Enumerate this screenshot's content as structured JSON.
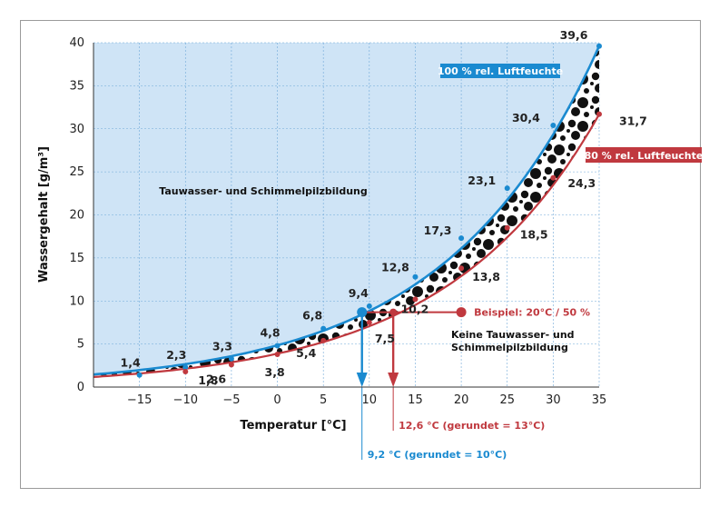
{
  "chart_data": {
    "type": "line",
    "xlabel": "Temperatur [°C]",
    "ylabel": "Wassergehalt [g/m³]",
    "xlim": [
      -20,
      35
    ],
    "ylim": [
      0,
      40
    ],
    "x_ticks": [
      -15,
      -10,
      -5,
      0,
      5,
      10,
      15,
      20,
      25,
      30,
      35
    ],
    "y_ticks": [
      0,
      5,
      10,
      15,
      20,
      25,
      30,
      35,
      40
    ],
    "grid": true,
    "series": [
      {
        "name": "100 % rel. Luftfeuchte",
        "color": "#1a8ad0",
        "x": [
          -15,
          -10,
          -5,
          0,
          5,
          10,
          15,
          20,
          25,
          30,
          35
        ],
        "y": [
          1.4,
          2.3,
          3.3,
          4.8,
          6.8,
          9.4,
          12.8,
          17.3,
          23.1,
          30.4,
          39.6
        ],
        "labels": [
          "1,4",
          "2,3",
          "3,3",
          "4,8",
          "6,8",
          "9,4",
          "12,8",
          "17,3",
          "23,1",
          "30,4",
          "39,6"
        ]
      },
      {
        "name": "80 % rel. Luftfeuchte",
        "color": "#c0393f",
        "x": [
          -10,
          -5,
          0,
          5,
          10,
          15,
          20,
          25,
          30,
          35
        ],
        "y": [
          1.8,
          2.6,
          3.8,
          5.4,
          7.5,
          10.2,
          13.8,
          18.5,
          24.3,
          31.7
        ],
        "labels": [
          "1,8",
          "2,6",
          "3,8",
          "5,4",
          "7,5",
          "10,2",
          "13,8",
          "18,5",
          "24,3",
          "31,7"
        ]
      }
    ],
    "regions": {
      "condensation": "Tauwasser- und Schimmelpilzbildung",
      "no_condensation_line1": "Keine Tauwasser- und",
      "no_condensation_line2": "Schimmelpilzbildung"
    },
    "example": {
      "label": "Beispiel: 20°C / 50 %",
      "x": 20,
      "y": 8.7,
      "dewpoint_100": {
        "x": 9.2,
        "label": "9,2 °C (gerundet = 10°C)"
      },
      "dewpoint_80": {
        "x": 12.6,
        "label": "12,6 °C (gerundet = 13°C)"
      }
    }
  },
  "colors": {
    "blue": "#1a8ad0",
    "red": "#c0393f",
    "area": "#cfe4f6",
    "grid": "#6fa8d8"
  }
}
